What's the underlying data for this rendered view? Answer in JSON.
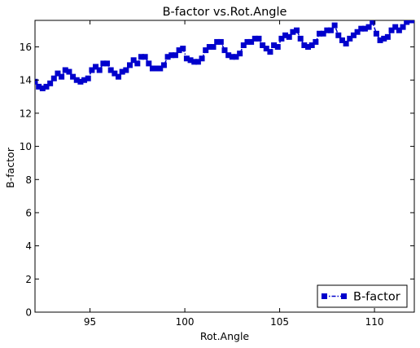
{
  "chart_data": {
    "type": "line",
    "title": "B-factor vs.Rot.Angle",
    "xlabel": "Rot.Angle",
    "ylabel": "B-factor",
    "xlim": [
      92.1,
      112.1
    ],
    "ylim": [
      0,
      17.6
    ],
    "xticks": [
      95,
      100,
      105,
      110
    ],
    "yticks": [
      0,
      2,
      4,
      6,
      8,
      10,
      12,
      14,
      16
    ],
    "grid": false,
    "legend_position": "lower-right",
    "series": [
      {
        "name": "B-factor",
        "color": "#0000cc",
        "marker": "square",
        "linestyle": "dash-dot",
        "x": [
          92.1,
          92.3,
          92.5,
          92.7,
          92.9,
          93.1,
          93.3,
          93.5,
          93.7,
          93.9,
          94.1,
          94.3,
          94.5,
          94.7,
          94.9,
          95.1,
          95.3,
          95.5,
          95.7,
          95.9,
          96.1,
          96.3,
          96.5,
          96.7,
          96.9,
          97.1,
          97.3,
          97.5,
          97.7,
          97.9,
          98.1,
          98.3,
          98.5,
          98.7,
          98.9,
          99.1,
          99.3,
          99.5,
          99.7,
          99.9,
          100.1,
          100.3,
          100.5,
          100.7,
          100.9,
          101.1,
          101.3,
          101.5,
          101.7,
          101.9,
          102.1,
          102.3,
          102.5,
          102.7,
          102.9,
          103.1,
          103.3,
          103.5,
          103.7,
          103.9,
          104.1,
          104.3,
          104.5,
          104.7,
          104.9,
          105.1,
          105.3,
          105.5,
          105.7,
          105.9,
          106.1,
          106.3,
          106.5,
          106.7,
          106.9,
          107.1,
          107.3,
          107.5,
          107.7,
          107.9,
          108.1,
          108.3,
          108.5,
          108.7,
          108.9,
          109.1,
          109.3,
          109.5,
          109.7,
          109.9,
          110.1,
          110.3,
          110.5,
          110.7,
          110.9,
          111.1,
          111.3,
          111.5,
          111.7,
          111.9,
          112.1
        ],
        "y": [
          13.9,
          13.6,
          13.5,
          13.6,
          13.8,
          14.1,
          14.4,
          14.2,
          14.6,
          14.5,
          14.2,
          14.0,
          13.9,
          14.0,
          14.1,
          14.6,
          14.8,
          14.6,
          15.0,
          15.0,
          14.6,
          14.4,
          14.2,
          14.5,
          14.6,
          14.9,
          15.2,
          15.0,
          15.4,
          15.4,
          15.0,
          14.7,
          14.7,
          14.7,
          14.9,
          15.4,
          15.5,
          15.5,
          15.8,
          15.9,
          15.3,
          15.2,
          15.1,
          15.1,
          15.3,
          15.8,
          16.0,
          16.0,
          16.3,
          16.3,
          15.8,
          15.5,
          15.4,
          15.4,
          15.6,
          16.1,
          16.3,
          16.3,
          16.5,
          16.5,
          16.1,
          15.9,
          15.7,
          16.1,
          16.0,
          16.5,
          16.7,
          16.6,
          16.9,
          17.0,
          16.5,
          16.1,
          16.0,
          16.1,
          16.3,
          16.8,
          16.8,
          17.0,
          17.0,
          17.3,
          16.7,
          16.4,
          16.2,
          16.5,
          16.7,
          16.9,
          17.1,
          17.1,
          17.2,
          17.5,
          16.8,
          16.4,
          16.5,
          16.6,
          17.0,
          17.2,
          17.0,
          17.2,
          17.5,
          17.6,
          17.6
        ]
      }
    ]
  }
}
